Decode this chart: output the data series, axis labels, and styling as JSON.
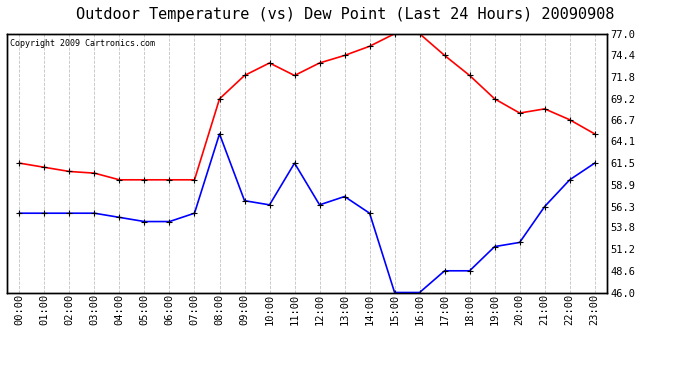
{
  "title": "Outdoor Temperature (vs) Dew Point (Last 24 Hours) 20090908",
  "copyright": "Copyright 2009 Cartronics.com",
  "hours": [
    "00:00",
    "01:00",
    "02:00",
    "03:00",
    "04:00",
    "05:00",
    "06:00",
    "07:00",
    "08:00",
    "09:00",
    "10:00",
    "11:00",
    "12:00",
    "13:00",
    "14:00",
    "15:00",
    "16:00",
    "17:00",
    "18:00",
    "19:00",
    "20:00",
    "21:00",
    "22:00",
    "23:00"
  ],
  "temp_red": [
    61.5,
    61.0,
    60.5,
    60.3,
    59.5,
    59.5,
    59.5,
    59.5,
    69.2,
    72.0,
    73.5,
    72.0,
    73.5,
    74.4,
    75.5,
    77.0,
    77.0,
    74.4,
    72.0,
    69.2,
    67.5,
    68.0,
    66.7,
    65.0
  ],
  "dew_blue": [
    55.5,
    55.5,
    55.5,
    55.5,
    55.0,
    54.5,
    54.5,
    55.5,
    65.0,
    57.0,
    56.5,
    61.5,
    56.5,
    57.5,
    55.5,
    46.0,
    46.0,
    48.6,
    48.6,
    51.5,
    52.0,
    56.3,
    59.5,
    61.5
  ],
  "ylim": [
    46.0,
    77.0
  ],
  "yticks": [
    46.0,
    48.6,
    51.2,
    53.8,
    56.3,
    58.9,
    61.5,
    64.1,
    66.7,
    69.2,
    71.8,
    74.4,
    77.0
  ],
  "bg_color": "#ffffff",
  "plot_bg": "#ffffff",
  "grid_color": "#bbbbbb",
  "red_color": "#ff0000",
  "blue_color": "#0000ff",
  "title_fontsize": 11,
  "tick_fontsize": 7.5,
  "copyright_fontsize": 6
}
